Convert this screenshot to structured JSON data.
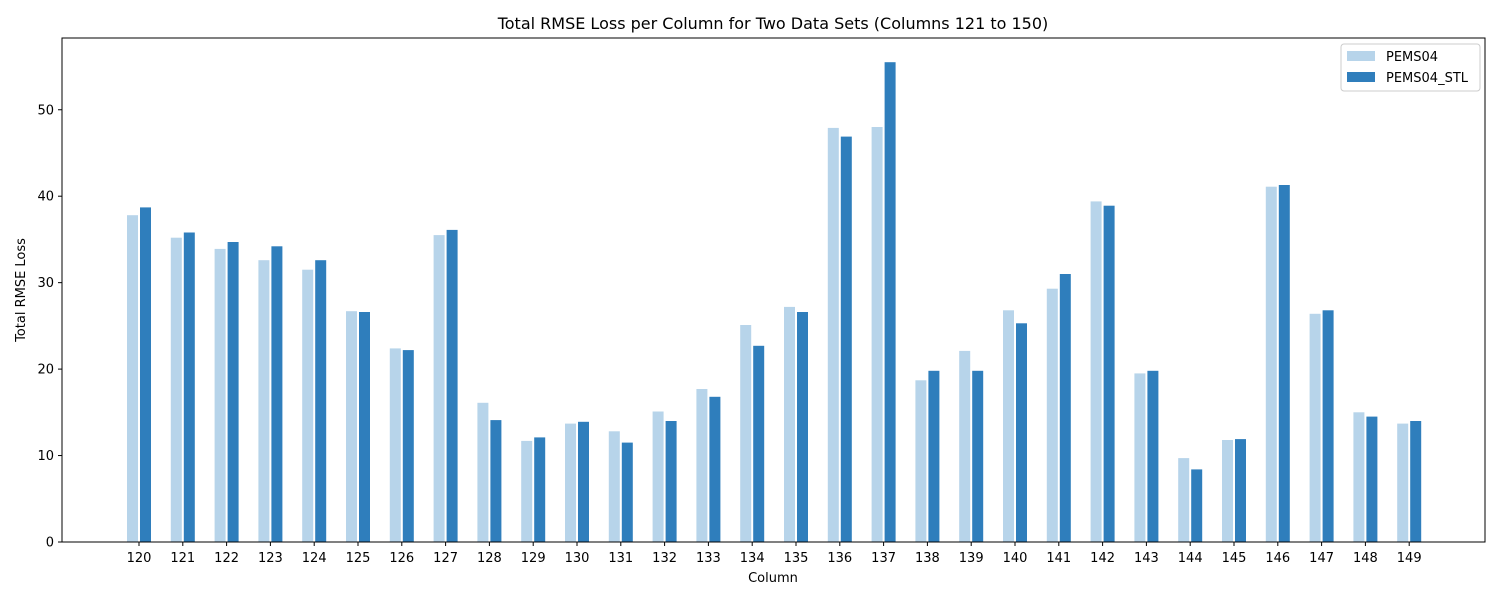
{
  "chart_data": {
    "type": "bar",
    "title": "Total RMSE Loss per Column for Two Data Sets (Columns 121 to 150)",
    "xlabel": "Column",
    "ylabel": "Total RMSE Loss",
    "ylim": [
      0,
      58.3
    ],
    "yticks": [
      0,
      10,
      20,
      30,
      40,
      50
    ],
    "grid": false,
    "legend_position": "top-right",
    "categories": [
      "120",
      "121",
      "122",
      "123",
      "124",
      "125",
      "126",
      "127",
      "128",
      "129",
      "130",
      "131",
      "132",
      "133",
      "134",
      "135",
      "136",
      "137",
      "138",
      "139",
      "140",
      "141",
      "142",
      "143",
      "144",
      "145",
      "146",
      "147",
      "148",
      "149"
    ],
    "series": [
      {
        "name": "PEMS04",
        "color": "#b7d4ea",
        "values": [
          37.8,
          35.2,
          33.9,
          32.6,
          31.5,
          26.7,
          22.4,
          35.5,
          16.1,
          11.7,
          13.7,
          12.8,
          15.1,
          17.7,
          25.1,
          27.2,
          47.9,
          48.0,
          18.7,
          22.1,
          26.8,
          29.3,
          39.4,
          19.5,
          9.7,
          11.8,
          41.1,
          26.4,
          15.0,
          13.7
        ]
      },
      {
        "name": "PEMS04_STL",
        "color": "#2f7ebc",
        "values": [
          38.7,
          35.8,
          34.7,
          34.2,
          32.6,
          26.6,
          22.2,
          36.1,
          14.1,
          12.1,
          13.9,
          11.5,
          14.0,
          16.8,
          22.7,
          26.6,
          46.9,
          55.5,
          19.8,
          19.8,
          25.3,
          31.0,
          38.9,
          19.8,
          8.4,
          11.9,
          41.3,
          26.8,
          14.5,
          14.0
        ]
      }
    ]
  }
}
